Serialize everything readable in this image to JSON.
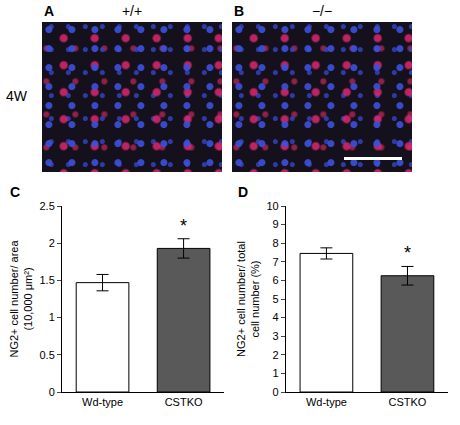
{
  "row_label": "4W",
  "panels": [
    {
      "panel": "A",
      "genotype": "+/+"
    },
    {
      "panel": "B",
      "genotype": "−/−"
    }
  ],
  "chart_data": [
    {
      "panel": "C",
      "type": "bar",
      "y_label": "NG2+ cell number/ area (10,000 μm²)",
      "categories": [
        "Wd-type",
        "CSTKO"
      ],
      "values": [
        1.47,
        1.93
      ],
      "errors": [
        0.11,
        0.13
      ],
      "colors": [
        "#ffffff",
        "#595959"
      ],
      "ylim": [
        0,
        2.5
      ],
      "yticks": [
        0,
        0.5,
        1,
        1.5,
        2,
        2.5
      ],
      "grid": false,
      "annotations": [
        {
          "text": "*",
          "x": "CSTKO"
        }
      ]
    },
    {
      "panel": "D",
      "type": "bar",
      "y_label": "NG2+ cell number/ total cell number (%)",
      "categories": [
        "Wd-type",
        "CSTKO"
      ],
      "values": [
        7.45,
        6.25
      ],
      "errors": [
        0.3,
        0.5
      ],
      "colors": [
        "#ffffff",
        "#595959"
      ],
      "ylim": [
        0,
        10
      ],
      "yticks": [
        0,
        1,
        2,
        3,
        4,
        5,
        6,
        7,
        8,
        9,
        10
      ],
      "grid": false,
      "annotations": [
        {
          "text": "*",
          "x": "CSTKO"
        }
      ]
    }
  ]
}
